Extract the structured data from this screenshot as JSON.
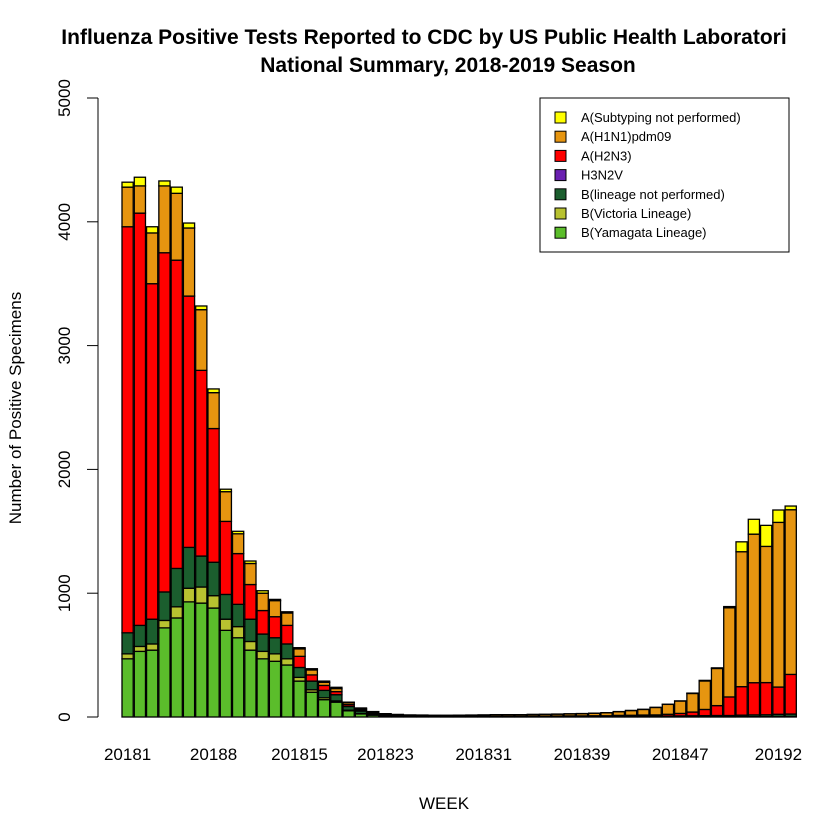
{
  "chart_data": {
    "type": "bar",
    "stacked": true,
    "title": "Influenza Positive Tests Reported to CDC by US Public Health Laboratori",
    "subtitle": "National Summary, 2018-2019 Season",
    "xlabel": "WEEK",
    "ylabel": "Number of Positive Specimens",
    "ylim": [
      0,
      5000
    ],
    "yticks": [
      "0",
      "1000",
      "2000",
      "3000",
      "4000",
      "5000"
    ],
    "xtick_labels": [
      "20181",
      "20188",
      "201815",
      "201823",
      "201831",
      "201839",
      "201847",
      "20192"
    ],
    "xtick_indices": [
      0,
      7,
      14,
      21,
      29,
      37,
      45,
      53
    ],
    "legend_position": "top-right",
    "weeks": [
      "20181",
      "20182",
      "20183",
      "20184",
      "20185",
      "20186",
      "20187",
      "20188",
      "20189",
      "201810",
      "201811",
      "201812",
      "201813",
      "201814",
      "201815",
      "201816",
      "201817",
      "201818",
      "201819",
      "201820",
      "201821",
      "201822",
      "201823",
      "201824",
      "201825",
      "201826",
      "201827",
      "201828",
      "201829",
      "201830",
      "201831",
      "201832",
      "201833",
      "201834",
      "201835",
      "201836",
      "201837",
      "201838",
      "201839",
      "201840",
      "201841",
      "201842",
      "201843",
      "201844",
      "201845",
      "201846",
      "201847",
      "201848",
      "201849",
      "201850",
      "201851",
      "201852",
      "20191",
      "20192",
      "20193"
    ],
    "series": [
      {
        "name": "B(Yamagata Lineage)",
        "color": "#5bbd2b",
        "values": [
          470,
          530,
          540,
          720,
          800,
          930,
          920,
          880,
          700,
          640,
          540,
          470,
          450,
          420,
          290,
          200,
          140,
          120,
          50,
          25,
          15,
          8,
          5,
          3,
          2,
          2,
          1,
          1,
          1,
          1,
          1,
          1,
          1,
          1,
          1,
          1,
          1,
          1,
          1,
          1,
          1,
          1,
          1,
          1,
          1,
          1,
          1,
          1,
          1,
          1,
          2,
          2,
          2,
          3,
          3
        ]
      },
      {
        "name": "B(Victoria Lineage)",
        "color": "#b8c230",
        "values": [
          40,
          40,
          50,
          60,
          90,
          110,
          130,
          100,
          90,
          90,
          70,
          60,
          60,
          50,
          30,
          20,
          15,
          10,
          5,
          3,
          2,
          1,
          1,
          1,
          1,
          1,
          1,
          1,
          1,
          1,
          1,
          1,
          1,
          1,
          1,
          1,
          1,
          1,
          1,
          1,
          1,
          1,
          1,
          1,
          1,
          1,
          1,
          1,
          1,
          1,
          1,
          1,
          1,
          1,
          1
        ]
      },
      {
        "name": "B(lineage not performed)",
        "color": "#1b5e2e",
        "values": [
          170,
          170,
          200,
          230,
          310,
          330,
          250,
          270,
          200,
          180,
          180,
          140,
          130,
          120,
          80,
          70,
          60,
          50,
          30,
          20,
          10,
          6,
          4,
          3,
          3,
          2,
          2,
          2,
          2,
          2,
          2,
          2,
          2,
          2,
          2,
          3,
          3,
          3,
          3,
          3,
          4,
          4,
          5,
          5,
          6,
          7,
          8,
          9,
          10,
          10,
          12,
          14,
          15,
          18,
          20
        ]
      },
      {
        "name": "H3N2V",
        "color": "#6a1fb0",
        "values": [
          0,
          0,
          0,
          0,
          0,
          0,
          0,
          0,
          0,
          0,
          0,
          0,
          0,
          0,
          0,
          0,
          0,
          0,
          0,
          0,
          0,
          0,
          0,
          0,
          0,
          0,
          0,
          0,
          0,
          0,
          0,
          0,
          0,
          0,
          0,
          0,
          0,
          0,
          0,
          0,
          0,
          0,
          0,
          0,
          0,
          0,
          0,
          0,
          0,
          0,
          0,
          0,
          0,
          0,
          0
        ]
      },
      {
        "name": "A(H2N3)",
        "color": "#ff0000",
        "values": [
          3280,
          3330,
          2710,
          2740,
          2490,
          2030,
          1500,
          1080,
          590,
          410,
          280,
          190,
          170,
          150,
          90,
          50,
          40,
          25,
          15,
          10,
          6,
          4,
          3,
          2,
          2,
          2,
          2,
          2,
          2,
          2,
          2,
          2,
          2,
          3,
          3,
          3,
          4,
          4,
          5,
          5,
          7,
          8,
          9,
          10,
          14,
          20,
          30,
          50,
          80,
          150,
          230,
          260,
          260,
          220,
          320
        ]
      },
      {
        "name": "A(H1N1)pdm09",
        "color": "#e69510",
        "values": [
          320,
          220,
          410,
          540,
          540,
          550,
          490,
          290,
          240,
          160,
          170,
          140,
          130,
          100,
          60,
          40,
          25,
          25,
          15,
          10,
          8,
          6,
          6,
          6,
          6,
          6,
          7,
          8,
          9,
          10,
          12,
          12,
          12,
          13,
          14,
          15,
          16,
          18,
          20,
          24,
          30,
          38,
          45,
          60,
          80,
          100,
          150,
          230,
          300,
          720,
          1090,
          1200,
          1100,
          1330,
          1330
        ]
      },
      {
        "name": "A(Subtyping not performed)",
        "color": "#ffff00",
        "values": [
          40,
          70,
          50,
          40,
          50,
          40,
          30,
          30,
          20,
          20,
          20,
          20,
          10,
          10,
          10,
          10,
          10,
          10,
          5,
          5,
          3,
          2,
          2,
          2,
          2,
          1,
          1,
          1,
          1,
          1,
          1,
          1,
          1,
          1,
          1,
          1,
          1,
          1,
          1,
          1,
          1,
          1,
          1,
          1,
          1,
          1,
          3,
          5,
          5,
          10,
          80,
          120,
          170,
          100,
          30
        ]
      }
    ],
    "legend_order": [
      "A(Subtyping not performed)",
      "A(H1N1)pdm09",
      "A(H2N3)",
      "H3N2V",
      "B(lineage not performed)",
      "B(Victoria Lineage)",
      "B(Yamagata Lineage)"
    ]
  }
}
